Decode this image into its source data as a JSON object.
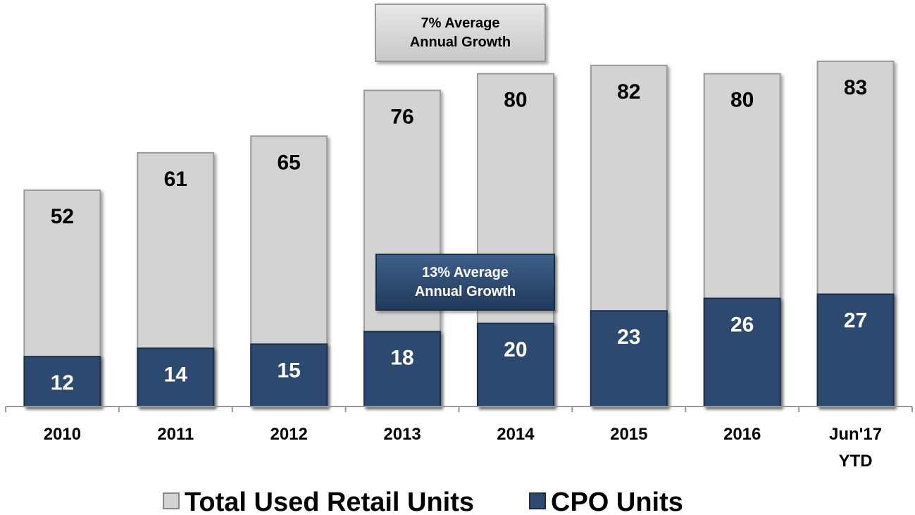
{
  "chart_data": {
    "type": "bar",
    "categories": [
      "2010",
      "2011",
      "2012",
      "2013",
      "2014",
      "2015",
      "2016",
      "Jun'17\nYTD"
    ],
    "series": [
      {
        "name": "Total Used Retail Units",
        "color": "#d3d3d3",
        "values": [
          52,
          61,
          65,
          76,
          80,
          82,
          80,
          83
        ]
      },
      {
        "name": "CPO Units",
        "color": "#2e4a70",
        "values": [
          12,
          14,
          15,
          18,
          20,
          23,
          26,
          27
        ]
      }
    ],
    "annotations": [
      "7% Average\nAnnual Growth",
      "13% Average\nAnnual Growth"
    ],
    "legend": "bottom"
  }
}
